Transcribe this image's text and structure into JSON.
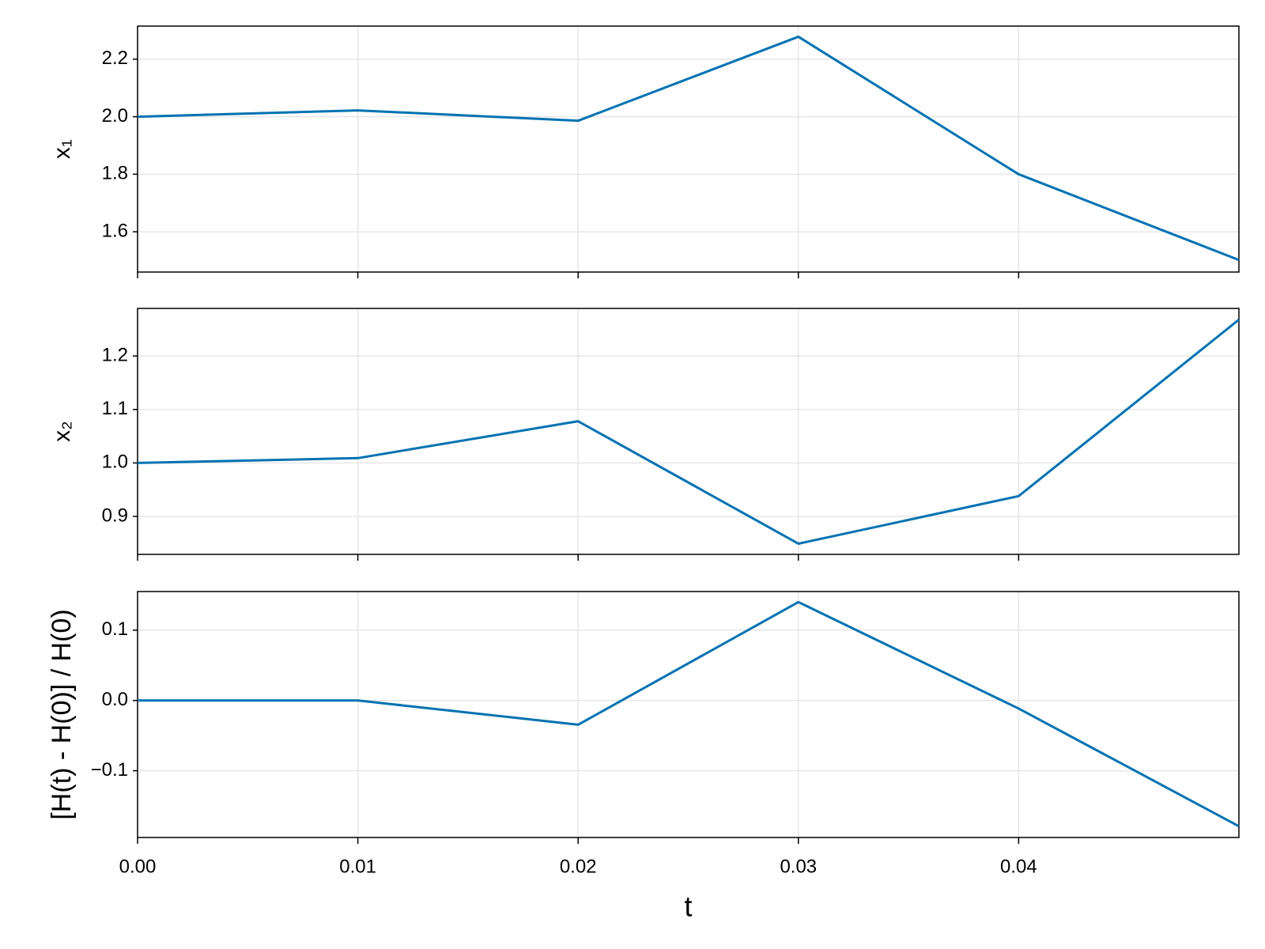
{
  "chart_data": [
    {
      "type": "line",
      "ylabel": "x₁",
      "x": [
        0,
        0.01,
        0.02,
        0.03,
        0.04,
        0.05
      ],
      "series": [
        {
          "color": "#0072b2",
          "values": [
            2.0,
            2.022,
            1.986,
            2.278,
            1.8,
            1.502
          ]
        }
      ],
      "xlim": [
        0,
        0.05
      ],
      "xticks": [
        0,
        0.01,
        0.02,
        0.03,
        0.04
      ],
      "ylim": [
        1.46,
        2.315
      ],
      "yticks": [
        1.6,
        1.8,
        {
          "value": 2,
          "label": "2.0"
        },
        2.2
      ],
      "grid": true
    },
    {
      "type": "line",
      "ylabel": "x₂",
      "x": [
        0,
        0.01,
        0.02,
        0.03,
        0.04,
        0.05
      ],
      "series": [
        {
          "color": "#0072b2",
          "values": [
            1.0,
            1.009,
            1.078,
            0.849,
            0.938,
            1.268
          ]
        }
      ],
      "xlim": [
        0,
        0.05
      ],
      "xticks": [
        0,
        0.01,
        0.02,
        0.03,
        0.04
      ],
      "ylim": [
        0.829,
        1.289
      ],
      "yticks": [
        0.9,
        {
          "value": 1,
          "label": "1.0"
        },
        1.1,
        1.2
      ],
      "grid": true
    },
    {
      "type": "line",
      "ylabel": "[H(t) - H(0)] / H(0)",
      "xlabel": "t",
      "x": [
        0,
        0.01,
        0.02,
        0.03,
        0.04,
        0.05
      ],
      "series": [
        {
          "color": "#0072b2",
          "values": [
            0,
            0,
            -0.0345,
            0.14,
            -0.0115,
            -0.179
          ]
        }
      ],
      "xlim": [
        0,
        0.05
      ],
      "xticks": [
        {
          "value": 0,
          "label": "0.00"
        },
        0.01,
        0.02,
        0.03,
        0.04
      ],
      "ylim": [
        -0.195,
        0.155
      ],
      "yticks": [
        {
          "value": -0.1,
          "label": "−0.1"
        },
        {
          "value": 0,
          "label": "0.0"
        },
        0.1
      ],
      "grid": true
    }
  ]
}
